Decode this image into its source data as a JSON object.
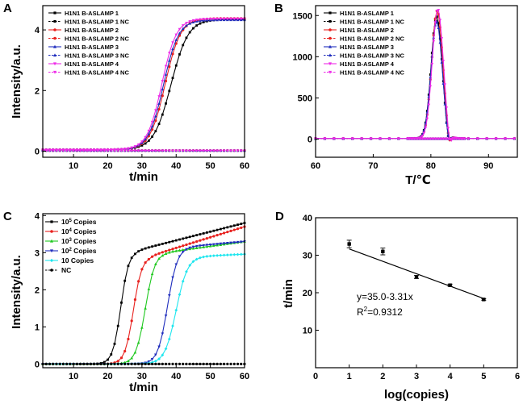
{
  "chart_data": [
    {
      "id": "A",
      "type": "line",
      "panel_label": "A",
      "xlabel": "t/min",
      "ylabel": "Intensity/a.u.",
      "xlim": [
        1,
        60
      ],
      "ylim": [
        -0.2,
        4.8
      ],
      "x_ticks": [
        10,
        20,
        30,
        40,
        50,
        60
      ],
      "y_ticks": [
        0,
        2,
        4
      ],
      "series": [
        {
          "name": "H1N1 B-ASLAMP 1",
          "color": "#000000",
          "dash": false,
          "marker": "square",
          "model": {
            "kind": "sigmoid",
            "base": 0.05,
            "top": 4.35,
            "t0": 38.5,
            "k": 0.4
          }
        },
        {
          "name": "H1N1 B-ASLAMP 1 NC",
          "color": "#000000",
          "dash": true,
          "marker": "square",
          "model": {
            "kind": "flat",
            "base": 0.02
          }
        },
        {
          "name": "H1N1 B-ASLAMP 2",
          "color": "#e8211e",
          "dash": false,
          "marker": "circle",
          "model": {
            "kind": "sigmoid",
            "base": 0.05,
            "top": 4.38,
            "t0": 36.8,
            "k": 0.45
          }
        },
        {
          "name": "H1N1 B-ASLAMP 2 NC",
          "color": "#e8211e",
          "dash": true,
          "marker": "circle",
          "model": {
            "kind": "flat",
            "base": 0.02
          }
        },
        {
          "name": "H1N1 B-ASLAMP 3",
          "color": "#1f2dbd",
          "dash": false,
          "marker": "triangle",
          "model": {
            "kind": "sigmoid",
            "base": 0.05,
            "top": 4.33,
            "t0": 36.3,
            "k": 0.46
          }
        },
        {
          "name": "H1N1 B-ASLAMP 3 NC",
          "color": "#1f2dbd",
          "dash": true,
          "marker": "triangle",
          "model": {
            "kind": "flat",
            "base": 0.02
          }
        },
        {
          "name": "H1N1 B-ASLAMP 4",
          "color": "#ee2ae8",
          "dash": false,
          "marker": "tridown",
          "model": {
            "kind": "sigmoid",
            "base": 0.05,
            "top": 4.37,
            "t0": 35.8,
            "k": 0.47
          }
        },
        {
          "name": "H1N1 B-ASLAMP 4 NC",
          "color": "#ee2ae8",
          "dash": true,
          "marker": "tridown",
          "model": {
            "kind": "flat",
            "base": 0.02
          }
        }
      ]
    },
    {
      "id": "B",
      "type": "line",
      "panel_label": "B",
      "xlabel": "T/℃",
      "ylabel": "",
      "xlim": [
        60,
        95
      ],
      "ylim": [
        -220,
        1620
      ],
      "x_ticks": [
        60,
        70,
        80,
        90
      ],
      "y_ticks": [
        0,
        500,
        1000,
        1500
      ],
      "series": [
        {
          "name": "H1N1 B-ASLAMP 1",
          "color": "#000000",
          "dash": false,
          "marker": "square",
          "model": {
            "kind": "peak",
            "center": 81.0,
            "height": 1480,
            "width": 0.95,
            "dip": 130
          }
        },
        {
          "name": "H1N1 B-ASLAMP 1 NC",
          "color": "#000000",
          "dash": true,
          "marker": "square",
          "model": {
            "kind": "flat",
            "base": 5
          }
        },
        {
          "name": "H1N1 B-ASLAMP 2",
          "color": "#e8211e",
          "dash": false,
          "marker": "circle",
          "model": {
            "kind": "peak",
            "center": 81.1,
            "height": 1550,
            "width": 0.95,
            "dip": 150
          }
        },
        {
          "name": "H1N1 B-ASLAMP 2 NC",
          "color": "#e8211e",
          "dash": true,
          "marker": "circle",
          "model": {
            "kind": "flat",
            "base": 5
          }
        },
        {
          "name": "H1N1 B-ASLAMP 3",
          "color": "#1f2dbd",
          "dash": false,
          "marker": "triangle",
          "model": {
            "kind": "peak",
            "center": 81.0,
            "height": 1420,
            "width": 0.95,
            "dip": 120
          }
        },
        {
          "name": "H1N1 B-ASLAMP 3 NC",
          "color": "#1f2dbd",
          "dash": true,
          "marker": "triangle",
          "model": {
            "kind": "flat",
            "base": 5
          }
        },
        {
          "name": "H1N1 B-ASLAMP 4",
          "color": "#ee2ae8",
          "dash": false,
          "marker": "tridown",
          "model": {
            "kind": "peak",
            "center": 81.2,
            "height": 1570,
            "width": 0.95,
            "dip": 160
          }
        },
        {
          "name": "H1N1 B-ASLAMP 4 NC",
          "color": "#ee2ae8",
          "dash": true,
          "marker": "tridown",
          "model": {
            "kind": "flat",
            "base": 5
          }
        }
      ]
    },
    {
      "id": "C",
      "type": "line",
      "panel_label": "C",
      "xlabel": "t/min",
      "ylabel": "Intensity/a.u.",
      "xlim": [
        1,
        60
      ],
      "ylim": [
        -0.1,
        4.05
      ],
      "x_ticks": [
        10,
        20,
        30,
        40,
        50,
        60
      ],
      "y_ticks": [
        0,
        1,
        2,
        3,
        4
      ],
      "series": [
        {
          "name": "10",
          "sup": "5",
          "suffix": " Copies",
          "color": "#000000",
          "dash": false,
          "marker": "square",
          "model": {
            "kind": "sigmoid2",
            "base": 0.0,
            "top": 3.05,
            "t0": 23.8,
            "k": 0.85,
            "rise": 0.75,
            "t1": 28,
            "t2": 60
          }
        },
        {
          "name": "10",
          "sup": "4",
          "suffix": " Copies",
          "color": "#e8211e",
          "dash": false,
          "marker": "circle",
          "model": {
            "kind": "sigmoid2",
            "base": 0.0,
            "top": 2.9,
            "t0": 27.5,
            "k": 0.8,
            "rise": 0.8,
            "t1": 32,
            "t2": 60
          }
        },
        {
          "name": "10",
          "sup": "3",
          "suffix": " Copies",
          "color": "#1ec81e",
          "dash": false,
          "marker": "triangle",
          "model": {
            "kind": "sigmoid2",
            "base": 0.0,
            "top": 3.0,
            "t0": 31.0,
            "k": 0.72,
            "rise": 0.3,
            "t1": 36,
            "t2": 60
          }
        },
        {
          "name": "10",
          "sup": "2",
          "suffix": " Copies",
          "color": "#1f2dbd",
          "dash": false,
          "marker": "tridown",
          "model": {
            "kind": "sigmoid2",
            "base": 0.0,
            "top": 3.15,
            "t0": 37.5,
            "k": 0.7,
            "rise": 0.15,
            "t1": 42,
            "t2": 60
          }
        },
        {
          "name": "10 Copies",
          "sup": "",
          "suffix": "",
          "color": "#1ee6ee",
          "dash": false,
          "marker": "diamond",
          "model": {
            "kind": "sigmoid2",
            "base": 0.0,
            "top": 2.9,
            "t0": 40.0,
            "k": 0.6,
            "rise": 0.06,
            "t1": 46,
            "t2": 60
          }
        },
        {
          "name": "NC",
          "sup": "",
          "suffix": "",
          "color": "#000000",
          "dash": true,
          "marker": "circle",
          "model": {
            "kind": "flat",
            "base": 0.0
          }
        }
      ]
    },
    {
      "id": "D",
      "type": "scatter",
      "panel_label": "D",
      "xlabel": "log(copies)",
      "ylabel": "t/min",
      "xlim": [
        0,
        6
      ],
      "ylim": [
        0,
        40
      ],
      "x_ticks": [
        0,
        1,
        2,
        3,
        4,
        5,
        6
      ],
      "y_ticks": [
        10,
        20,
        30,
        40
      ],
      "points": [
        {
          "x": 1,
          "y": 33.0,
          "err": 1.0
        },
        {
          "x": 2,
          "y": 31.0,
          "err": 0.9
        },
        {
          "x": 3,
          "y": 24.2,
          "err": 0.4
        },
        {
          "x": 4,
          "y": 22.0,
          "err": 0.3
        },
        {
          "x": 5,
          "y": 18.2,
          "err": 0.2
        }
      ],
      "fit": {
        "intercept": 35.0,
        "slope": -3.31,
        "x_range": [
          1,
          5
        ]
      },
      "annotation": {
        "equation": "y=35.0-3.31x",
        "r2_prefix": "R",
        "r2_sup": "2",
        "r2_value": "=0.9312"
      }
    }
  ]
}
